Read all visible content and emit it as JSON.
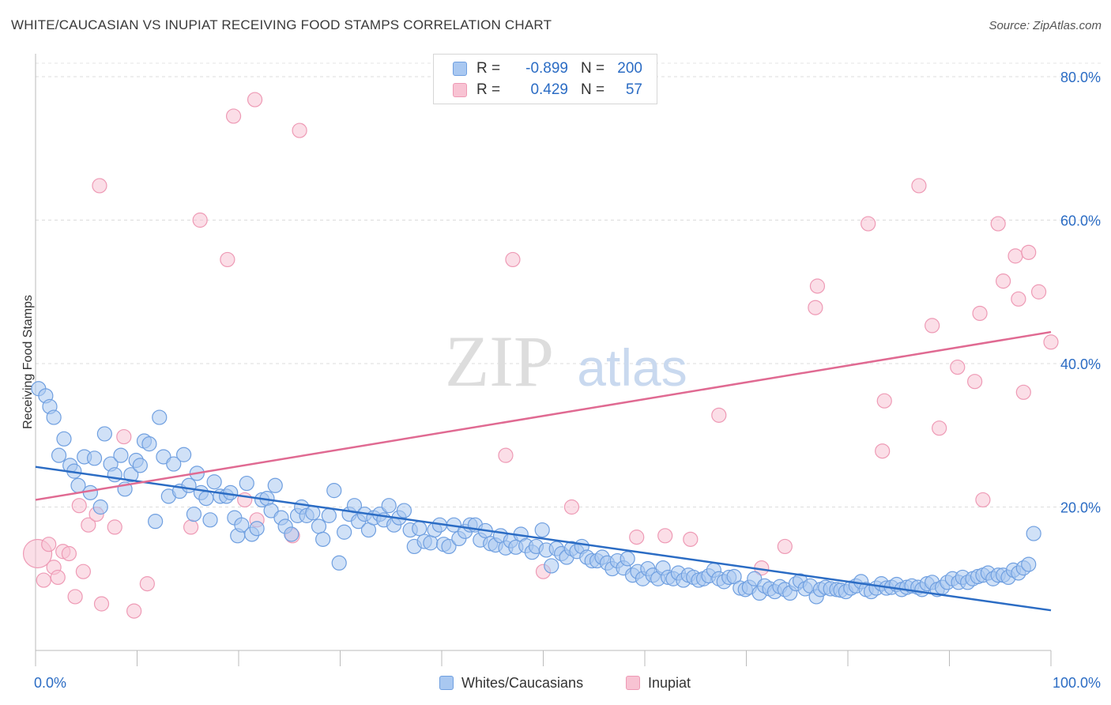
{
  "title": "WHITE/CAUCASIAN VS INUPIAT RECEIVING FOOD STAMPS CORRELATION CHART",
  "source": "Source: ZipAtlas.com",
  "watermark": {
    "zip": "ZIP",
    "atlas": "atlas"
  },
  "legend": {
    "rows": [
      {
        "r_label": "R =",
        "r_value": "-0.899",
        "n_label": "N =",
        "n_value": "200",
        "fill": "#a9c8f1",
        "stroke": "#6f9fe0"
      },
      {
        "r_label": "R =",
        "r_value": "0.429",
        "n_label": "N =",
        "n_value": "57",
        "fill": "#f8c3d3",
        "stroke": "#ee9ab5"
      }
    ],
    "bottom": [
      {
        "label": "Whites/Caucasians",
        "fill": "#a9c8f1",
        "stroke": "#6f9fe0"
      },
      {
        "label": "Inupiat",
        "fill": "#f8c3d3",
        "stroke": "#ee9ab5"
      }
    ]
  },
  "chart_data": {
    "type": "scatter",
    "title": "WHITE/CAUCASIAN VS INUPIAT RECEIVING FOOD STAMPS CORRELATION CHART",
    "xlabel": "",
    "ylabel": "Receiving Food Stamps",
    "xlim": [
      0,
      100
    ],
    "ylim": [
      0,
      80
    ],
    "x_tick_labels": [
      "0.0%",
      "100.0%"
    ],
    "y_ticks": [
      20,
      40,
      60,
      80
    ],
    "y_tick_labels": [
      "20.0%",
      "40.0%",
      "60.0%",
      "80.0%"
    ],
    "grid": true,
    "legend_position": "top-center",
    "colors": {
      "blue": "#2b6cc4",
      "pink": "#e06a92",
      "tick_text": "#2b6cc4"
    },
    "series": [
      {
        "name": "Whites/Caucasians",
        "color": "#6f9fe0",
        "fill": "#a9c8f1",
        "trend": {
          "x": [
            0,
            100
          ],
          "y": [
            25.6,
            5.6
          ],
          "color": "#2b6cc4"
        },
        "points": [
          [
            0.3,
            36.5
          ],
          [
            1.0,
            35.5
          ],
          [
            1.4,
            34.0
          ],
          [
            1.8,
            32.5
          ],
          [
            2.3,
            27.2
          ],
          [
            2.8,
            29.5
          ],
          [
            3.4,
            25.8
          ],
          [
            3.8,
            25.0
          ],
          [
            4.2,
            23.0
          ],
          [
            4.8,
            27.0
          ],
          [
            5.4,
            22.0
          ],
          [
            5.8,
            26.8
          ],
          [
            6.4,
            20.0
          ],
          [
            6.8,
            30.2
          ],
          [
            7.4,
            26.0
          ],
          [
            7.8,
            24.5
          ],
          [
            8.4,
            27.2
          ],
          [
            8.8,
            22.5
          ],
          [
            9.4,
            24.5
          ],
          [
            9.9,
            26.5
          ],
          [
            10.3,
            25.8
          ],
          [
            10.7,
            29.2
          ],
          [
            11.2,
            28.8
          ],
          [
            11.8,
            18.0
          ],
          [
            12.2,
            32.5
          ],
          [
            12.6,
            27.0
          ],
          [
            13.1,
            21.5
          ],
          [
            13.6,
            26.0
          ],
          [
            14.2,
            22.2
          ],
          [
            14.6,
            27.3
          ],
          [
            15.1,
            23.0
          ],
          [
            15.6,
            19.0
          ],
          [
            15.9,
            24.7
          ],
          [
            16.3,
            22.0
          ],
          [
            16.8,
            21.2
          ],
          [
            17.2,
            18.2
          ],
          [
            17.6,
            23.5
          ],
          [
            18.2,
            21.5
          ],
          [
            18.8,
            21.5
          ],
          [
            19.2,
            22.0
          ],
          [
            19.6,
            18.5
          ],
          [
            19.9,
            16.0
          ],
          [
            20.3,
            17.5
          ],
          [
            20.8,
            23.3
          ],
          [
            21.3,
            16.2
          ],
          [
            21.8,
            17.0
          ],
          [
            22.3,
            21.0
          ],
          [
            22.8,
            21.2
          ],
          [
            23.2,
            19.5
          ],
          [
            23.6,
            23.0
          ],
          [
            24.2,
            18.5
          ],
          [
            24.6,
            17.3
          ],
          [
            25.2,
            16.2
          ],
          [
            25.8,
            18.8
          ],
          [
            26.2,
            20.0
          ],
          [
            26.7,
            18.8
          ],
          [
            27.3,
            19.2
          ],
          [
            27.9,
            17.3
          ],
          [
            28.3,
            15.5
          ],
          [
            28.9,
            18.8
          ],
          [
            29.4,
            22.3
          ],
          [
            29.9,
            12.2
          ],
          [
            30.4,
            16.5
          ],
          [
            30.9,
            19.0
          ],
          [
            31.4,
            20.2
          ],
          [
            31.8,
            18.0
          ],
          [
            32.4,
            19.0
          ],
          [
            32.8,
            16.8
          ],
          [
            33.3,
            18.5
          ],
          [
            33.9,
            19.0
          ],
          [
            34.3,
            18.2
          ],
          [
            34.8,
            20.2
          ],
          [
            35.3,
            17.5
          ],
          [
            35.8,
            18.5
          ],
          [
            36.3,
            19.5
          ],
          [
            36.9,
            16.8
          ],
          [
            37.3,
            14.5
          ],
          [
            37.8,
            17.0
          ],
          [
            38.3,
            15.2
          ],
          [
            38.9,
            15.0
          ],
          [
            39.3,
            16.8
          ],
          [
            39.8,
            17.5
          ],
          [
            40.2,
            14.8
          ],
          [
            40.7,
            14.5
          ],
          [
            41.2,
            17.5
          ],
          [
            41.7,
            15.6
          ],
          [
            42.3,
            16.6
          ],
          [
            42.8,
            17.5
          ],
          [
            43.3,
            17.5
          ],
          [
            43.8,
            15.4
          ],
          [
            44.3,
            16.7
          ],
          [
            44.8,
            14.9
          ],
          [
            45.3,
            14.7
          ],
          [
            45.8,
            16.0
          ],
          [
            46.3,
            14.3
          ],
          [
            46.8,
            15.3
          ],
          [
            47.3,
            14.4
          ],
          [
            47.8,
            16.2
          ],
          [
            48.3,
            14.6
          ],
          [
            48.9,
            13.7
          ],
          [
            49.3,
            14.5
          ],
          [
            49.9,
            16.8
          ],
          [
            50.3,
            14.0
          ],
          [
            50.8,
            11.8
          ],
          [
            51.3,
            14.2
          ],
          [
            51.8,
            13.5
          ],
          [
            52.3,
            13.0
          ],
          [
            52.8,
            14.2
          ],
          [
            53.3,
            13.8
          ],
          [
            53.8,
            14.5
          ],
          [
            54.3,
            13.0
          ],
          [
            54.8,
            12.5
          ],
          [
            55.3,
            12.5
          ],
          [
            55.8,
            13.0
          ],
          [
            56.3,
            12.2
          ],
          [
            56.8,
            11.4
          ],
          [
            57.3,
            12.5
          ],
          [
            57.9,
            11.5
          ],
          [
            58.3,
            12.8
          ],
          [
            58.8,
            10.5
          ],
          [
            59.3,
            11.0
          ],
          [
            59.8,
            10.0
          ],
          [
            60.3,
            11.4
          ],
          [
            60.8,
            10.5
          ],
          [
            61.3,
            10.0
          ],
          [
            61.8,
            11.5
          ],
          [
            62.3,
            10.2
          ],
          [
            62.8,
            10.0
          ],
          [
            63.3,
            10.8
          ],
          [
            63.8,
            9.8
          ],
          [
            64.3,
            10.5
          ],
          [
            64.8,
            10.2
          ],
          [
            65.3,
            9.8
          ],
          [
            65.8,
            10.0
          ],
          [
            66.3,
            10.4
          ],
          [
            66.8,
            11.2
          ],
          [
            67.3,
            10.0
          ],
          [
            67.8,
            9.6
          ],
          [
            68.3,
            10.2
          ],
          [
            68.8,
            10.3
          ],
          [
            69.4,
            8.7
          ],
          [
            69.9,
            8.5
          ],
          [
            70.3,
            8.8
          ],
          [
            70.8,
            10.0
          ],
          [
            71.3,
            8.0
          ],
          [
            71.8,
            9.0
          ],
          [
            72.3,
            8.6
          ],
          [
            72.8,
            8.2
          ],
          [
            73.3,
            8.9
          ],
          [
            73.8,
            8.5
          ],
          [
            74.3,
            8.0
          ],
          [
            74.9,
            9.3
          ],
          [
            75.3,
            9.7
          ],
          [
            75.8,
            8.6
          ],
          [
            76.3,
            9.0
          ],
          [
            76.9,
            7.5
          ],
          [
            77.3,
            8.5
          ],
          [
            77.8,
            8.8
          ],
          [
            78.3,
            8.6
          ],
          [
            78.9,
            8.5
          ],
          [
            79.3,
            8.4
          ],
          [
            79.8,
            8.2
          ],
          [
            80.3,
            8.7
          ],
          [
            80.8,
            9.0
          ],
          [
            81.3,
            9.6
          ],
          [
            81.8,
            8.5
          ],
          [
            82.3,
            8.2
          ],
          [
            82.8,
            8.7
          ],
          [
            83.3,
            9.3
          ],
          [
            83.8,
            8.7
          ],
          [
            84.3,
            8.8
          ],
          [
            84.8,
            9.2
          ],
          [
            85.3,
            8.5
          ],
          [
            85.8,
            8.8
          ],
          [
            86.3,
            9.0
          ],
          [
            86.9,
            8.8
          ],
          [
            87.3,
            8.5
          ],
          [
            87.8,
            9.3
          ],
          [
            88.3,
            9.5
          ],
          [
            88.8,
            8.5
          ],
          [
            89.3,
            8.8
          ],
          [
            89.8,
            9.5
          ],
          [
            90.3,
            10.0
          ],
          [
            90.9,
            9.5
          ],
          [
            91.3,
            10.2
          ],
          [
            91.8,
            9.5
          ],
          [
            92.3,
            10.0
          ],
          [
            92.8,
            10.3
          ],
          [
            93.3,
            10.5
          ],
          [
            93.8,
            10.8
          ],
          [
            94.3,
            10.0
          ],
          [
            94.8,
            10.5
          ],
          [
            95.3,
            10.5
          ],
          [
            95.8,
            10.2
          ],
          [
            96.3,
            11.2
          ],
          [
            96.8,
            10.8
          ],
          [
            97.3,
            11.5
          ],
          [
            97.8,
            12.0
          ],
          [
            98.3,
            16.3
          ]
        ]
      },
      {
        "name": "Inupiat",
        "color": "#ee9ab5",
        "fill": "#f8c3d3",
        "trend": {
          "x": [
            0,
            100
          ],
          "y": [
            21.0,
            44.4
          ],
          "color": "#e06a92"
        },
        "points": [
          [
            0.2,
            13.5
          ],
          [
            0.8,
            9.8
          ],
          [
            1.3,
            14.8
          ],
          [
            1.8,
            11.6
          ],
          [
            2.2,
            10.2
          ],
          [
            2.7,
            13.8
          ],
          [
            3.3,
            13.5
          ],
          [
            3.9,
            7.5
          ],
          [
            4.3,
            20.2
          ],
          [
            4.7,
            11.0
          ],
          [
            5.2,
            17.5
          ],
          [
            6.0,
            19.0
          ],
          [
            6.5,
            6.5
          ],
          [
            7.8,
            17.2
          ],
          [
            8.7,
            29.8
          ],
          [
            9.7,
            5.5
          ],
          [
            11.0,
            9.3
          ],
          [
            6.3,
            64.8
          ],
          [
            15.3,
            17.2
          ],
          [
            16.2,
            60.0
          ],
          [
            18.9,
            54.5
          ],
          [
            19.5,
            74.5
          ],
          [
            20.6,
            21.0
          ],
          [
            21.6,
            76.8
          ],
          [
            21.8,
            18.2
          ],
          [
            25.3,
            16.0
          ],
          [
            26.0,
            72.5
          ],
          [
            50.0,
            11.0
          ],
          [
            52.8,
            20.0
          ],
          [
            47.0,
            54.5
          ],
          [
            46.3,
            27.2
          ],
          [
            59.2,
            15.8
          ],
          [
            62.0,
            16.0
          ],
          [
            64.5,
            15.5
          ],
          [
            67.3,
            32.8
          ],
          [
            71.5,
            11.5
          ],
          [
            73.8,
            14.5
          ],
          [
            76.8,
            47.8
          ],
          [
            77.0,
            50.8
          ],
          [
            82.0,
            59.5
          ],
          [
            83.6,
            34.8
          ],
          [
            83.4,
            27.8
          ],
          [
            87.0,
            64.8
          ],
          [
            88.3,
            45.3
          ],
          [
            89.0,
            31.0
          ],
          [
            90.8,
            39.5
          ],
          [
            92.5,
            37.5
          ],
          [
            93.0,
            47.0
          ],
          [
            93.3,
            21.0
          ],
          [
            94.8,
            59.5
          ],
          [
            95.3,
            51.5
          ],
          [
            96.5,
            55.0
          ],
          [
            96.8,
            49.0
          ],
          [
            97.3,
            36.0
          ],
          [
            97.8,
            55.5
          ],
          [
            98.8,
            50.0
          ],
          [
            100.0,
            43.0
          ]
        ]
      }
    ]
  }
}
